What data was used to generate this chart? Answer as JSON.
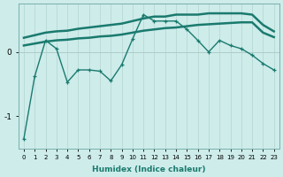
{
  "x": [
    0,
    1,
    2,
    3,
    4,
    5,
    6,
    7,
    8,
    9,
    10,
    11,
    12,
    13,
    14,
    15,
    16,
    17,
    18,
    19,
    20,
    21,
    22,
    23
  ],
  "line_main": [
    -1.35,
    -0.38,
    0.18,
    0.05,
    -0.47,
    -0.28,
    -0.28,
    -0.3,
    -0.45,
    -0.2,
    0.2,
    0.58,
    0.48,
    0.48,
    0.48,
    0.35,
    0.18,
    0.0,
    0.18,
    0.1,
    0.05,
    -0.05,
    -0.18,
    -0.28
  ],
  "line_upper": [
    0.22,
    0.26,
    0.3,
    0.32,
    0.33,
    0.36,
    0.38,
    0.4,
    0.42,
    0.44,
    0.48,
    0.52,
    0.55,
    0.55,
    0.58,
    0.58,
    0.58,
    0.6,
    0.6,
    0.6,
    0.6,
    0.58,
    0.42,
    0.32
  ],
  "line_lower": [
    0.1,
    0.13,
    0.16,
    0.18,
    0.19,
    0.21,
    0.22,
    0.24,
    0.25,
    0.27,
    0.3,
    0.33,
    0.35,
    0.37,
    0.38,
    0.4,
    0.42,
    0.43,
    0.44,
    0.45,
    0.46,
    0.46,
    0.3,
    0.23
  ],
  "color_main": "#1a7a6e",
  "color_band": "#1a7a6e",
  "bg_color": "#cdecea",
  "grid_color_v": "#b8d8d6",
  "grid_color_h": "#b0ccca",
  "xlabel": "Humidex (Indice chaleur)",
  "ylim": [
    -1.5,
    0.75
  ],
  "xlim": [
    -0.5,
    23.5
  ],
  "yticks": [
    -1,
    0
  ],
  "xticks": [
    0,
    1,
    2,
    3,
    4,
    5,
    6,
    7,
    8,
    9,
    10,
    11,
    12,
    13,
    14,
    15,
    16,
    17,
    18,
    19,
    20,
    21,
    22,
    23
  ],
  "linewidth_main": 1.0,
  "linewidth_band": 1.8,
  "marker_size": 3.5
}
